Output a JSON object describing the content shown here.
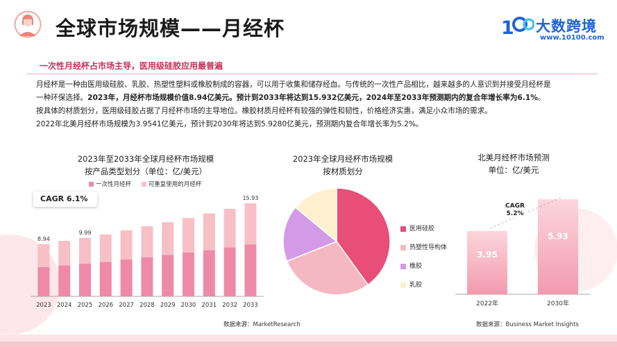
{
  "header": {
    "title": "全球市场规模——月经杯",
    "logo_text": "大数跨境",
    "logo_url": "www.10100.com"
  },
  "subhead": "一次性月经杯占市场主导，医用级硅胶应用最普遍",
  "body": {
    "p1a": "月经杯是一种由医用级硅胶、乳胶、热塑性塑料或橡胶制成的容器，可以用于收集和储存经血。与传统的一次性产品相比，越来越多的人意识到并接受月经杯是",
    "p1b": "一种环保选择。",
    "p1b_bold": "2023年，月经杯市场规模价值8.94亿美元。预计到2033年将达到15.932亿美元，2024年至2033年预测期内的复合年增长率为6.1%",
    "p1b_end": "。",
    "p2": "按具体的材质划分，医用级硅胶占据了月经杯市场的主导地位。橡胶材质月经杯有较强的弹性和韧性，价格经济实惠，满足小众市场的需求。",
    "p3": "2022年北美月经杯市场规模为3.9541亿美元，预计到2030年将达到5.9280亿美元，预测期内复合年增长率为5.2%。"
  },
  "colors": {
    "accent": "#c8315b",
    "bar_disposable": "#ee8aa8",
    "bar_reusable": "#f7bfc6",
    "pie_silicone": "#e84e78",
    "pie_thermoplastic": "#f5b8c3",
    "pie_rubber": "#d39ae8",
    "pie_latex": "#fdf1cf",
    "na_bar": "#f39ab0"
  },
  "chart_data": [
    {
      "type": "bar",
      "stacked": true,
      "title": "2023年至2033年全球月经杯市场规模",
      "subtitle": "按产品类型划分（单位：亿/美元）",
      "categories": [
        "2023",
        "2024",
        "2025",
        "2026",
        "2027",
        "2028",
        "2029",
        "2030",
        "2031",
        "2032",
        "2033"
      ],
      "totals": [
        8.94,
        9.5,
        9.99,
        10.6,
        11.3,
        12.0,
        12.7,
        13.4,
        14.2,
        15.0,
        15.93
      ],
      "series": [
        {
          "name": "一次性月经杯",
          "values": [
            5.0,
            5.3,
            5.6,
            5.9,
            6.3,
            6.7,
            7.1,
            7.5,
            7.9,
            8.4,
            8.9
          ]
        },
        {
          "name": "可重复使用的月经杯",
          "values": [
            3.94,
            4.2,
            4.39,
            4.7,
            5.0,
            5.3,
            5.6,
            5.9,
            6.3,
            6.6,
            7.03
          ]
        }
      ],
      "data_labels": [
        {
          "category": "2023",
          "text": "8.94"
        },
        {
          "category": "2025",
          "text": "9.99"
        },
        {
          "category": "2033",
          "text": "15.93"
        }
      ],
      "annotation": "CAGR 6.1%",
      "ylim": [
        0,
        17
      ],
      "source": "数据来源：MarketResearch"
    },
    {
      "type": "pie",
      "title": "2023年全球月经杯市场规模",
      "subtitle": "按材质划分",
      "slices": [
        {
          "name": "医用硅胶",
          "value": 40
        },
        {
          "name": "热塑性导构体",
          "value": 29
        },
        {
          "name": "橡胶",
          "value": 17
        },
        {
          "name": "乳胶",
          "value": 14
        }
      ]
    },
    {
      "type": "bar",
      "title": "北美月经杯市场预测",
      "subtitle": "单位：亿/美元",
      "categories": [
        "2022年",
        "2030年"
      ],
      "values": [
        3.95,
        5.93
      ],
      "annotation": "CAGR\n5.2%",
      "ylim": [
        0,
        6.5
      ],
      "source": "数据来源：Business Market Insights"
    }
  ]
}
